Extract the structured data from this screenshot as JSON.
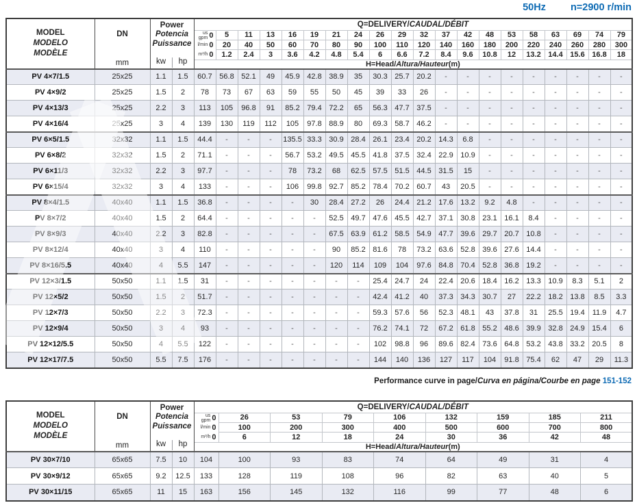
{
  "colors": {
    "accent_blue": "#0e6bb4",
    "row_stripe": "#e9ebf3"
  },
  "page_header": {
    "frequency": "50Hz",
    "speed": "n=2900 r/min"
  },
  "note": {
    "plain": "Performance curve in page/",
    "italic": "Curva en página/Courbe en page",
    "pages": "151-152"
  },
  "table1": {
    "header": {
      "model_lines": [
        "MODEL",
        "MODELO",
        "MODÈLE"
      ],
      "dn_label": "DN",
      "dn_unit": "mm",
      "power_lines": [
        "Power",
        "Potencia",
        "Puissance"
      ],
      "kw_label": "kw",
      "hp_label": "hp",
      "delivery_title_plain": "Q=DELIVERY/",
      "delivery_title_italic": "CAUDAL/DÉBIT",
      "head_title_plain": "H=Head/",
      "head_title_italic": "Altura/Hauteur",
      "head_title_unit": "(m)",
      "unit_rows": [
        {
          "unit_top": "us",
          "unit": "gpm",
          "values": [
            "0",
            "5",
            "11",
            "13",
            "16",
            "19",
            "21",
            "24",
            "26",
            "29",
            "32",
            "37",
            "42",
            "48",
            "53",
            "58",
            "63",
            "69",
            "74",
            "79"
          ]
        },
        {
          "unit": "l/min",
          "values": [
            "0",
            "20",
            "40",
            "50",
            "60",
            "70",
            "80",
            "90",
            "100",
            "110",
            "120",
            "140",
            "160",
            "180",
            "200",
            "220",
            "240",
            "260",
            "280",
            "300"
          ]
        },
        {
          "unit": "m³/h",
          "values": [
            "0",
            "1.2",
            "2.4",
            "3",
            "3.6",
            "4.2",
            "4.8",
            "5.4",
            "6",
            "6.6",
            "7.2",
            "8.4",
            "9.6",
            "10.8",
            "12",
            "13.2",
            "14.4",
            "15.6",
            "16.8",
            "18"
          ]
        }
      ]
    },
    "rows": [
      {
        "model": "PV 4×7/1.5",
        "dn": "25x25",
        "kw": "1.1",
        "hp": "1.5",
        "group_start": false,
        "heads": [
          "60.7",
          "56.8",
          "52.1",
          "49",
          "45.9",
          "42.8",
          "38.9",
          "35",
          "30.3",
          "25.7",
          "20.2",
          "-",
          "-",
          "-",
          "-",
          "-",
          "-",
          "-",
          "-",
          "-"
        ]
      },
      {
        "model": "PV 4×9/2",
        "dn": "25x25",
        "kw": "1.5",
        "hp": "2",
        "group_start": false,
        "heads": [
          "78",
          "73",
          "67",
          "63",
          "59",
          "55",
          "50",
          "45",
          "39",
          "33",
          "26",
          "-",
          "-",
          "-",
          "-",
          "-",
          "-",
          "-",
          "-",
          "-"
        ]
      },
      {
        "model": "PV 4×13/3",
        "dn": "25x25",
        "kw": "2.2",
        "hp": "3",
        "group_start": false,
        "heads": [
          "113",
          "105",
          "96.8",
          "91",
          "85.2",
          "79.4",
          "72.2",
          "65",
          "56.3",
          "47.7",
          "37.5",
          "-",
          "-",
          "-",
          "-",
          "-",
          "-",
          "-",
          "-",
          "-"
        ]
      },
      {
        "model": "PV 4×16/4",
        "dn": "25x25",
        "kw": "3",
        "hp": "4",
        "group_start": false,
        "heads": [
          "139",
          "130",
          "119",
          "112",
          "105",
          "97.8",
          "88.9",
          "80",
          "69.3",
          "58.7",
          "46.2",
          "-",
          "-",
          "-",
          "-",
          "-",
          "-",
          "-",
          "-",
          "-"
        ]
      },
      {
        "model": "PV 6×5/1.5",
        "dn": "32x32",
        "kw": "1.1",
        "hp": "1.5",
        "group_start": true,
        "heads": [
          "44.4",
          "-",
          "-",
          "-",
          "135.5",
          "33.3",
          "30.9",
          "28.4",
          "26.1",
          "23.4",
          "20.2",
          "14.3",
          "6.8",
          "-",
          "-",
          "-",
          "-",
          "-",
          "-",
          "-"
        ]
      },
      {
        "model": "PV 6×8/2",
        "dn": "32x32",
        "kw": "1.5",
        "hp": "2",
        "group_start": false,
        "heads": [
          "71.1",
          "-",
          "-",
          "-",
          "56.7",
          "53.2",
          "49.5",
          "45.5",
          "41.8",
          "37.5",
          "32.4",
          "22.9",
          "10.9",
          "-",
          "-",
          "-",
          "-",
          "-",
          "-",
          "-"
        ]
      },
      {
        "model": "PV 6×11/3",
        "dn": "32x32",
        "kw": "2.2",
        "hp": "3",
        "group_start": false,
        "heads": [
          "97.7",
          "-",
          "-",
          "-",
          "78",
          "73.2",
          "68",
          "62.5",
          "57.5",
          "51.5",
          "44.5",
          "31.5",
          "15",
          "-",
          "-",
          "-",
          "-",
          "-",
          "-",
          "-"
        ]
      },
      {
        "model": "PV 6×15/4",
        "dn": "32x32",
        "kw": "3",
        "hp": "4",
        "group_start": false,
        "heads": [
          "133",
          "-",
          "-",
          "-",
          "106",
          "99.8",
          "92.7",
          "85.2",
          "78.4",
          "70.2",
          "60.7",
          "43",
          "20.5",
          "-",
          "-",
          "-",
          "-",
          "-",
          "-",
          "-"
        ]
      },
      {
        "model": "PV 8×4/1.5",
        "dn": "40x40",
        "kw": "1.1",
        "hp": "1.5",
        "group_start": true,
        "heads": [
          "36.8",
          "-",
          "-",
          "-",
          "-",
          "30",
          "28.4",
          "27.2",
          "26",
          "24.4",
          "21.2",
          "17.6",
          "13.2",
          "9.2",
          "4.8",
          "-",
          "-",
          "-",
          "-",
          "-"
        ]
      },
      {
        "model": "PV 8×7/2",
        "dn": "40x40",
        "kw": "1.5",
        "hp": "2",
        "group_start": false,
        "heads": [
          "64.4",
          "-",
          "-",
          "-",
          "-",
          "-",
          "52.5",
          "49.7",
          "47.6",
          "45.5",
          "42.7",
          "37.1",
          "30.8",
          "23.1",
          "16.1",
          "8.4",
          "-",
          "-",
          "-",
          "-"
        ]
      },
      {
        "model": "PV 8×9/3",
        "dn": "40x40",
        "kw": "2.2",
        "hp": "3",
        "group_start": false,
        "heads": [
          "82.8",
          "-",
          "-",
          "-",
          "-",
          "-",
          "67.5",
          "63.9",
          "61.2",
          "58.5",
          "54.9",
          "47.7",
          "39.6",
          "29.7",
          "20.7",
          "10.8",
          "-",
          "-",
          "-",
          "-"
        ]
      },
      {
        "model": "PV 8×12/4",
        "dn": "40x40",
        "kw": "3",
        "hp": "4",
        "group_start": false,
        "heads": [
          "110",
          "-",
          "-",
          "-",
          "-",
          "-",
          "90",
          "85.2",
          "81.6",
          "78",
          "73.2",
          "63.6",
          "52.8",
          "39.6",
          "27.6",
          "14.4",
          "-",
          "-",
          "-",
          "-"
        ]
      },
      {
        "model": "PV 8×16/5.5",
        "dn": "40x40",
        "kw": "4",
        "hp": "5.5",
        "group_start": false,
        "heads": [
          "147",
          "-",
          "-",
          "-",
          "-",
          "-",
          "120",
          "114",
          "109",
          "104",
          "97.6",
          "84.8",
          "70.4",
          "52.8",
          "36.8",
          "19.2",
          "-",
          "-",
          "-",
          "-"
        ]
      },
      {
        "model": "PV 12×3/1.5",
        "dn": "50x50",
        "kw": "1.1",
        "hp": "1.5",
        "group_start": true,
        "heads": [
          "31",
          "-",
          "-",
          "-",
          "-",
          "-",
          "-",
          "-",
          "25.4",
          "24.7",
          "24",
          "22.4",
          "20.6",
          "18.4",
          "16.2",
          "13.3",
          "10.9",
          "8.3",
          "5.1",
          "2"
        ]
      },
      {
        "model": "PV 12×5/2",
        "dn": "50x50",
        "kw": "1.5",
        "hp": "2",
        "group_start": false,
        "heads": [
          "51.7",
          "-",
          "-",
          "-",
          "-",
          "-",
          "-",
          "-",
          "42.4",
          "41.2",
          "40",
          "37.3",
          "34.3",
          "30.7",
          "27",
          "22.2",
          "18.2",
          "13.8",
          "8.5",
          "3.3"
        ]
      },
      {
        "model": "PV 12×7/3",
        "dn": "50x50",
        "kw": "2.2",
        "hp": "3",
        "group_start": false,
        "heads": [
          "72.3",
          "-",
          "-",
          "-",
          "-",
          "-",
          "-",
          "-",
          "59.3",
          "57.6",
          "56",
          "52.3",
          "48.1",
          "43",
          "37.8",
          "31",
          "25.5",
          "19.4",
          "11.9",
          "4.7"
        ]
      },
      {
        "model": "PV 12×9/4",
        "dn": "50x50",
        "kw": "3",
        "hp": "4",
        "group_start": false,
        "heads": [
          "93",
          "-",
          "-",
          "-",
          "-",
          "-",
          "-",
          "-",
          "76.2",
          "74.1",
          "72",
          "67.2",
          "61.8",
          "55.2",
          "48.6",
          "39.9",
          "32.8",
          "24.9",
          "15.4",
          "6"
        ]
      },
      {
        "model": "PV 12×12/5.5",
        "dn": "50x50",
        "kw": "4",
        "hp": "5.5",
        "group_start": false,
        "heads": [
          "122",
          "-",
          "-",
          "-",
          "-",
          "-",
          "-",
          "-",
          "102",
          "98.8",
          "96",
          "89.6",
          "82.4",
          "73.6",
          "64.8",
          "53.2",
          "43.8",
          "33.2",
          "20.5",
          "8"
        ]
      },
      {
        "model": "PV 12×17/7.5",
        "dn": "50x50",
        "kw": "5.5",
        "hp": "7.5",
        "group_start": false,
        "heads": [
          "176",
          "-",
          "-",
          "-",
          "-",
          "-",
          "-",
          "-",
          "144",
          "140",
          "136",
          "127",
          "117",
          "104",
          "91.8",
          "75.4",
          "62",
          "47",
          "29",
          "11.3"
        ]
      }
    ]
  },
  "table2": {
    "header": {
      "model_lines": [
        "MODEL",
        "MODELO",
        "MODÈLE"
      ],
      "dn_label": "DN",
      "dn_unit": "mm",
      "power_lines": [
        "Power",
        "Potencia",
        "Puissance"
      ],
      "kw_label": "kw",
      "hp_label": "hp",
      "delivery_title_plain": "Q=DELIVERY/",
      "delivery_title_italic": "CAUDAL/DÉBIT",
      "head_title_plain": "H=Head/",
      "head_title_italic": "Altura/Hauteur",
      "head_title_unit": "(m)",
      "unit_rows": [
        {
          "unit_top": "us",
          "unit": "gpm",
          "values": [
            "0",
            "26",
            "53",
            "79",
            "106",
            "132",
            "159",
            "185",
            "211"
          ]
        },
        {
          "unit": "l/min",
          "values": [
            "0",
            "100",
            "200",
            "300",
            "400",
            "500",
            "600",
            "700",
            "800"
          ]
        },
        {
          "unit": "m³/h",
          "values": [
            "0",
            "6",
            "12",
            "18",
            "24",
            "30",
            "36",
            "42",
            "48"
          ]
        }
      ]
    },
    "rows": [
      {
        "model": "PV 30×7/10",
        "dn": "65x65",
        "kw": "7.5",
        "hp": "10",
        "group_start": false,
        "heads": [
          "104",
          "100",
          "93",
          "83",
          "74",
          "64",
          "49",
          "31",
          "4"
        ]
      },
      {
        "model": "PV 30×9/12",
        "dn": "65x65",
        "kw": "9.2",
        "hp": "12.5",
        "group_start": false,
        "heads": [
          "133",
          "128",
          "119",
          "108",
          "96",
          "82",
          "63",
          "40",
          "5"
        ]
      },
      {
        "model": "PV 30×11/15",
        "dn": "65x65",
        "kw": "11",
        "hp": "15",
        "group_start": false,
        "heads": [
          "163",
          "156",
          "145",
          "132",
          "116",
          "99",
          "77",
          "48",
          "6"
        ]
      }
    ]
  }
}
